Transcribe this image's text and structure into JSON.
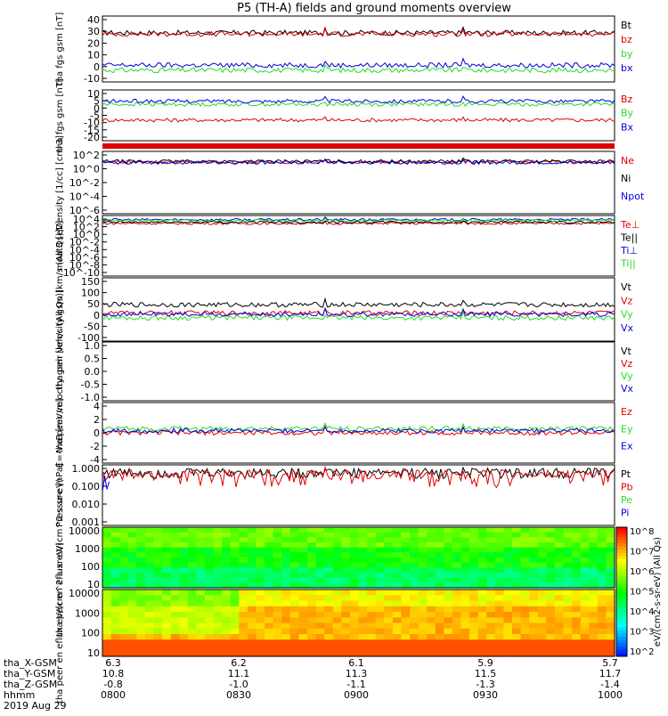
{
  "title": "P5 (TH-A) fields and ground moments overview",
  "colors": {
    "black": "#000000",
    "red": "#e00000",
    "green": "#22dd22",
    "blue": "#0000dd"
  },
  "footer": {
    "rows": [
      {
        "label": "tha_X-GSM",
        "values": [
          "6.3",
          "6.2",
          "6.1",
          "5.9",
          "5.7"
        ]
      },
      {
        "label": "tha_Y-GSM",
        "values": [
          "10.8",
          "11.1",
          "11.3",
          "11.5",
          "11.7"
        ]
      },
      {
        "label": "tha_Z-GSM",
        "values": [
          "-0.8",
          "-1.0",
          "-1.1",
          "-1.3",
          "-1.4"
        ]
      },
      {
        "label": "hhmm",
        "values": [
          "0800",
          "0830",
          "0900",
          "0930",
          "1000"
        ]
      }
    ],
    "date": "2019 Aug 29"
  },
  "colorbar": {
    "ticks": [
      "10^8",
      "10^7",
      "10^6",
      "10^5",
      "10^4",
      "10^3",
      "10^2"
    ],
    "label": "eV/(cm2-s-sr-eV) (All Qs)"
  },
  "chart_data": [
    {
      "type": "line",
      "ylabel": "tha fgs gsm [nT]",
      "ylim": [
        -10,
        40
      ],
      "yticks": [
        "40",
        "30",
        "20",
        "10",
        "0",
        "-10"
      ],
      "series": [
        {
          "name": "Bt",
          "color": "black",
          "level": 28
        },
        {
          "name": "bz",
          "color": "red",
          "level": 27
        },
        {
          "name": "by",
          "color": "green",
          "level": -2
        },
        {
          "name": "bx",
          "color": "blue",
          "level": 2
        }
      ]
    },
    {
      "type": "line",
      "ylabel": "tha fgs gsm [nT]",
      "ylim": [
        -20,
        10
      ],
      "yticks": [
        "10",
        "5",
        "0",
        "-5",
        "-10",
        "-15",
        "-20"
      ],
      "series": [
        {
          "name": "Bz",
          "color": "red",
          "level": -8
        },
        {
          "name": "By",
          "color": "green",
          "level": 2
        },
        {
          "name": "Bx",
          "color": "blue",
          "level": 4
        }
      ]
    },
    {
      "type": "line",
      "ylabel": "Density [1/cc] [cm-3]",
      "ylim": [
        -8,
        2
      ],
      "log": true,
      "yticks": [
        "10^2",
        "10^0",
        "10^-2",
        "10^-4",
        "10^-6"
      ],
      "series": [
        {
          "name": "Ne",
          "color": "red",
          "level": 0.5
        },
        {
          "name": "Ni",
          "color": "black",
          "level": 0.6
        },
        {
          "name": "Npot",
          "color": "blue",
          "level": 0.4
        }
      ]
    },
    {
      "type": "line",
      "ylabel": "moat3 [eV]",
      "ylim": [
        -10,
        4
      ],
      "log": true,
      "yticks": [
        "10^4",
        "10^2",
        "10^0",
        "10^-2",
        "10^-4",
        "10^-6",
        "10^-8",
        "10^-10"
      ],
      "series": [
        {
          "name": "Te⊥",
          "color": "red",
          "level": 2.5
        },
        {
          "name": "Te||",
          "color": "black",
          "level": 2.8
        },
        {
          "name": "Ti⊥",
          "color": "blue",
          "level": 3.4
        },
        {
          "name": "Ti||",
          "color": "green",
          "level": 3.2
        }
      ]
    },
    {
      "type": "line",
      "ylabel": "tha peir velocity gsm [km/s (All Qs)]",
      "ylim": [
        -100,
        150
      ],
      "yticks": [
        "150",
        "100",
        "50",
        "0",
        "-50",
        "-100"
      ],
      "series": [
        {
          "name": "Vt",
          "color": "black",
          "level": 45
        },
        {
          "name": "Vz",
          "color": "red",
          "level": 10
        },
        {
          "name": "Vy",
          "color": "green",
          "level": -10
        },
        {
          "name": "Vx",
          "color": "blue",
          "level": 5
        }
      ]
    },
    {
      "type": "line",
      "ylabel": "tha peer velocity gsm [km/s (All Qs)]",
      "ylim": [
        -1,
        1
      ],
      "yticks": [
        "1.0",
        "0.5",
        "0.0",
        "-0.5",
        "-1.0"
      ],
      "series": [
        {
          "name": "Vt",
          "color": "black"
        },
        {
          "name": "Vz",
          "color": "red"
        },
        {
          "name": "Vy",
          "color": "green"
        },
        {
          "name": "Vx",
          "color": "blue"
        }
      ]
    },
    {
      "type": "line",
      "ylabel": "E=-VxB [mV/m]",
      "ylim": [
        -4,
        4
      ],
      "yticks": [
        "4",
        "2",
        "0",
        "-2",
        "-4"
      ],
      "series": [
        {
          "name": "Ez",
          "color": "red",
          "level": 0
        },
        {
          "name": "Ey",
          "color": "green",
          "level": 0.6
        },
        {
          "name": "Ex",
          "color": "blue",
          "level": 0.3
        }
      ]
    },
    {
      "type": "line",
      "ylabel": "Pressure [nPa]",
      "ylim": [
        0.001,
        1
      ],
      "log": true,
      "yticks": [
        "1.000",
        "0.100",
        "0.010",
        "0.001"
      ],
      "series": [
        {
          "name": "Pt",
          "color": "black",
          "level": 0.52
        },
        {
          "name": "Pb",
          "color": "red",
          "level": 0.38
        },
        {
          "name": "Pe",
          "color": "green",
          "level": 0.011
        },
        {
          "name": "Pi",
          "color": "blue",
          "level": 0.12
        }
      ]
    },
    {
      "type": "heatmap",
      "ylabel": "tha peir en eflux eV/(cm^2-s-sr-eV)",
      "yticks": [
        "10000",
        "1000",
        "100",
        "10"
      ]
    },
    {
      "type": "heatmap",
      "ylabel": "tha peer en eflux eV/(cm^2-s-sr-eV)",
      "yticks": [
        "10000",
        "1000",
        "100",
        "10"
      ]
    }
  ]
}
